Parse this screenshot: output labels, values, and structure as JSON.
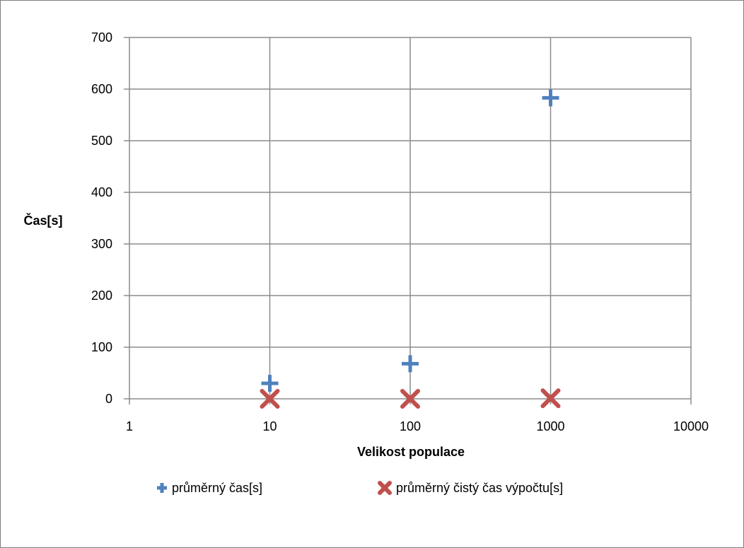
{
  "chart_data": {
    "type": "scatter",
    "title": "",
    "xlabel": "Velikost populace",
    "ylabel": "Čas[s]",
    "xscale": "log",
    "xlim": [
      1,
      10000
    ],
    "ylim": [
      0,
      700
    ],
    "x_ticks": [
      "1",
      "10",
      "100",
      "1000",
      "10000"
    ],
    "y_ticks": [
      "0",
      "100",
      "200",
      "300",
      "400",
      "500",
      "600",
      "700"
    ],
    "grid": true,
    "legend": "bottom",
    "series": [
      {
        "name": "průměrný čas[s]",
        "marker": "plus",
        "color": "#4f81bd",
        "x": [
          10,
          100,
          1000
        ],
        "y": [
          30,
          68,
          583
        ]
      },
      {
        "name": "průměrný čistý čas výpočtu[s]",
        "marker": "x",
        "color": "#c0504d",
        "x": [
          10,
          100,
          1000
        ],
        "y": [
          0,
          0,
          1
        ]
      }
    ]
  }
}
